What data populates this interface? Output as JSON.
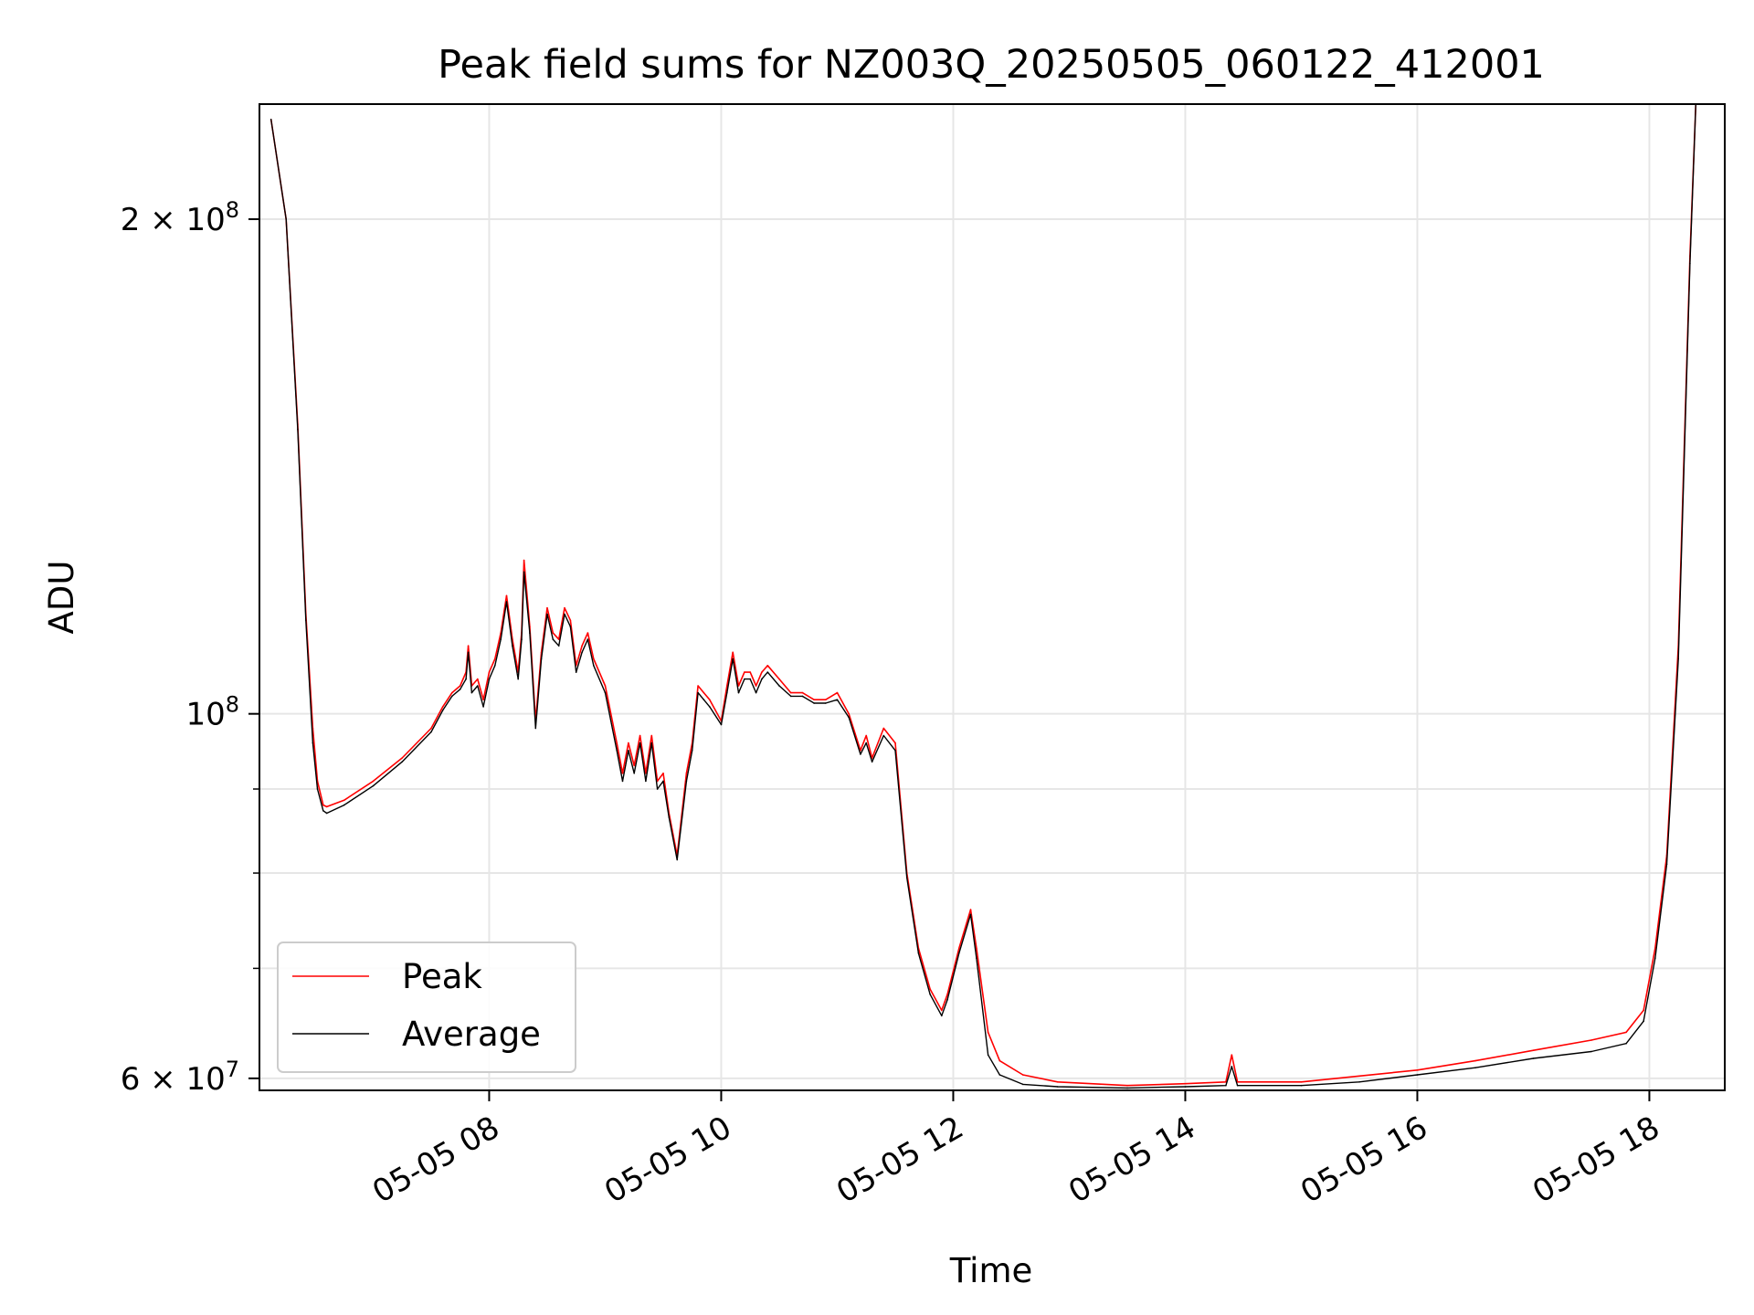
{
  "chart_data": {
    "type": "line",
    "title": "Peak field sums for NZ003Q_20250505_060122_412001",
    "xlabel": "Time",
    "ylabel": "ADU",
    "yscale": "log",
    "xlim": [
      6.02,
      18.65
    ],
    "ylim": [
      59000000,
      235000000
    ],
    "grid": true,
    "legend_position": "lower-left",
    "x_ticks": [
      {
        "value": 8,
        "label": "05-05 08"
      },
      {
        "value": 10,
        "label": "05-05 10"
      },
      {
        "value": 12,
        "label": "05-05 12"
      },
      {
        "value": 14,
        "label": "05-05 14"
      },
      {
        "value": 16,
        "label": "05-05 16"
      },
      {
        "value": 18,
        "label": "05-05 18"
      }
    ],
    "y_ticks": [
      {
        "value": 60000000,
        "base": "6 × 10",
        "exp": "7"
      },
      {
        "value": 100000000,
        "base": "10",
        "exp": "8"
      },
      {
        "value": 200000000,
        "base": "2 × 10",
        "exp": "8"
      }
    ],
    "y_minor_ticks": [
      70000000,
      80000000,
      90000000
    ],
    "series": [
      {
        "name": "Peak",
        "color": "#ff0000",
        "x": [
          6.12,
          6.25,
          6.35,
          6.42,
          6.48,
          6.52,
          6.57,
          6.6,
          6.75,
          7.0,
          7.25,
          7.5,
          7.6,
          7.68,
          7.75,
          7.8,
          7.82,
          7.85,
          7.9,
          7.95,
          8.0,
          8.05,
          8.1,
          8.15,
          8.2,
          8.25,
          8.28,
          8.3,
          8.35,
          8.4,
          8.45,
          8.5,
          8.55,
          8.6,
          8.65,
          8.7,
          8.75,
          8.8,
          8.85,
          8.9,
          9.0,
          9.1,
          9.15,
          9.2,
          9.25,
          9.3,
          9.35,
          9.4,
          9.45,
          9.5,
          9.55,
          9.62,
          9.7,
          9.75,
          9.8,
          9.85,
          9.9,
          10.0,
          10.05,
          10.1,
          10.15,
          10.2,
          10.25,
          10.3,
          10.35,
          10.4,
          10.5,
          10.6,
          10.7,
          10.8,
          10.9,
          11.0,
          11.1,
          11.2,
          11.25,
          11.3,
          11.4,
          11.5,
          11.6,
          11.7,
          11.8,
          11.9,
          11.95,
          12.05,
          12.15,
          12.2,
          12.3,
          12.4,
          12.6,
          12.9,
          13.5,
          14.0,
          14.35,
          14.4,
          14.45,
          15.0,
          15.5,
          16.0,
          16.5,
          17.0,
          17.5,
          17.8,
          17.95,
          18.05,
          18.15,
          18.25,
          18.35,
          18.4
        ],
        "values": [
          230000000,
          200000000,
          150000000,
          115000000,
          98000000,
          91000000,
          88000000,
          87800000,
          88600000,
          91000000,
          94000000,
          98000000,
          101000000,
          103000000,
          104000000,
          106000000,
          110000000,
          104000000,
          105000000,
          102000000,
          106000000,
          108000000,
          112000000,
          118000000,
          111000000,
          106000000,
          112000000,
          124000000,
          113000000,
          99000000,
          109000000,
          116000000,
          112000000,
          111000000,
          116000000,
          114000000,
          107000000,
          110000000,
          112000000,
          108000000,
          104000000,
          96000000,
          92000000,
          96000000,
          93000000,
          97000000,
          92000000,
          97000000,
          91000000,
          92000000,
          87000000,
          82000000,
          92000000,
          96000000,
          104000000,
          103000000,
          102000000,
          99000000,
          104000000,
          109000000,
          104000000,
          106000000,
          106000000,
          104000000,
          106000000,
          107000000,
          105000000,
          103000000,
          103000000,
          102000000,
          102000000,
          103000000,
          100000000,
          95000000,
          97000000,
          94000000,
          98000000,
          96000000,
          80000000,
          72000000,
          68000000,
          66000000,
          67500000,
          72000000,
          76000000,
          72000000,
          64000000,
          61500000,
          60300000,
          59700000,
          59400000,
          59550000,
          59700000,
          62000000,
          59700000,
          59700000,
          60200000,
          60700000,
          61500000,
          62400000,
          63300000,
          64000000,
          66000000,
          72000000,
          82000000,
          110000000,
          190000000,
          235000000
        ]
      },
      {
        "name": "Average",
        "color": "#000000",
        "x": [
          6.12,
          6.25,
          6.35,
          6.42,
          6.48,
          6.52,
          6.57,
          6.6,
          6.75,
          7.0,
          7.25,
          7.5,
          7.6,
          7.68,
          7.75,
          7.8,
          7.82,
          7.85,
          7.9,
          7.95,
          8.0,
          8.05,
          8.1,
          8.15,
          8.2,
          8.25,
          8.28,
          8.3,
          8.35,
          8.4,
          8.45,
          8.5,
          8.55,
          8.6,
          8.65,
          8.7,
          8.75,
          8.8,
          8.85,
          8.9,
          9.0,
          9.1,
          9.15,
          9.2,
          9.25,
          9.3,
          9.35,
          9.4,
          9.45,
          9.5,
          9.55,
          9.62,
          9.7,
          9.75,
          9.8,
          9.85,
          9.9,
          10.0,
          10.05,
          10.1,
          10.15,
          10.2,
          10.25,
          10.3,
          10.35,
          10.4,
          10.5,
          10.6,
          10.7,
          10.8,
          10.9,
          11.0,
          11.1,
          11.2,
          11.25,
          11.3,
          11.4,
          11.5,
          11.6,
          11.7,
          11.8,
          11.9,
          11.95,
          12.05,
          12.15,
          12.2,
          12.3,
          12.4,
          12.6,
          12.9,
          13.5,
          14.0,
          14.35,
          14.4,
          14.45,
          15.0,
          15.5,
          16.0,
          16.5,
          17.0,
          17.5,
          17.8,
          17.95,
          18.05,
          18.15,
          18.25,
          18.35,
          18.4
        ],
        "values": [
          230000000,
          200000000,
          149000000,
          114000000,
          96000000,
          90000000,
          87300000,
          87000000,
          88000000,
          90400000,
          93500000,
          97500000,
          100500000,
          102500000,
          103500000,
          105000000,
          109000000,
          103000000,
          104000000,
          101000000,
          105000000,
          107000000,
          111000000,
          117000000,
          110000000,
          105000000,
          111000000,
          122000000,
          112000000,
          98000000,
          108000000,
          115000000,
          111000000,
          110000000,
          115000000,
          113000000,
          106000000,
          109000000,
          111000000,
          107000000,
          103000000,
          95000000,
          91000000,
          95000000,
          92000000,
          96000000,
          91000000,
          96000000,
          90000000,
          91000000,
          86500000,
          81500000,
          91000000,
          95000000,
          103000000,
          102000000,
          101000000,
          98500000,
          103000000,
          108000000,
          103000000,
          105000000,
          105000000,
          103000000,
          105000000,
          106000000,
          104000000,
          102500000,
          102500000,
          101500000,
          101500000,
          102000000,
          99500000,
          94500000,
          96000000,
          93500000,
          97000000,
          95000000,
          79500000,
          71500000,
          67500000,
          65500000,
          67000000,
          71500000,
          75500000,
          71000000,
          62000000,
          60300000,
          59500000,
          59300000,
          59200000,
          59300000,
          59400000,
          61000000,
          59400000,
          59400000,
          59700000,
          60300000,
          60900000,
          61700000,
          62300000,
          63000000,
          65000000,
          71000000,
          81000000,
          108000000,
          188000000,
          235000000
        ]
      }
    ]
  }
}
